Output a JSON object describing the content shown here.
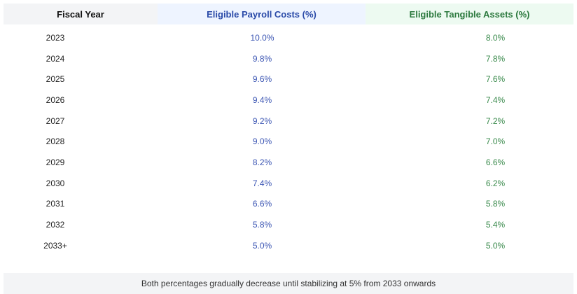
{
  "table": {
    "headers": {
      "year": "Fiscal Year",
      "payroll": "Eligible Payroll Costs (%)",
      "assets": "Eligible Tangible Assets (%)"
    },
    "rows": [
      {
        "year": "2023",
        "payroll": "10.0%",
        "assets": "8.0%"
      },
      {
        "year": "2024",
        "payroll": "9.8%",
        "assets": "7.8%"
      },
      {
        "year": "2025",
        "payroll": "9.6%",
        "assets": "7.6%"
      },
      {
        "year": "2026",
        "payroll": "9.4%",
        "assets": "7.4%"
      },
      {
        "year": "2027",
        "payroll": "9.2%",
        "assets": "7.2%"
      },
      {
        "year": "2028",
        "payroll": "9.0%",
        "assets": "7.0%"
      },
      {
        "year": "2029",
        "payroll": "8.2%",
        "assets": "6.6%"
      },
      {
        "year": "2030",
        "payroll": "7.4%",
        "assets": "6.2%"
      },
      {
        "year": "2031",
        "payroll": "6.6%",
        "assets": "5.8%"
      },
      {
        "year": "2032",
        "payroll": "5.8%",
        "assets": "5.4%"
      },
      {
        "year": "2033+",
        "payroll": "5.0%",
        "assets": "5.0%"
      }
    ]
  },
  "note": "Both percentages gradually decrease until stabilizing at 5% from 2033 onwards",
  "colors": {
    "payroll_text": "#3b55b3",
    "assets_text": "#3a8a4c",
    "payroll_header_bg": "#eef4ff",
    "assets_header_bg": "#edfaf1"
  }
}
